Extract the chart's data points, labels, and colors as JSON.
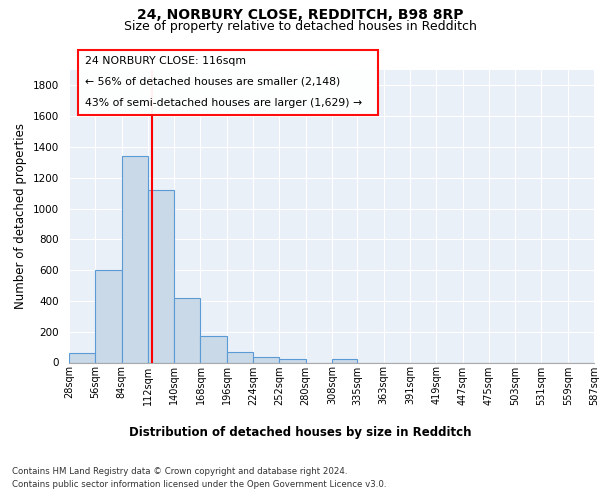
{
  "title1": "24, NORBURY CLOSE, REDDITCH, B98 8RP",
  "title2": "Size of property relative to detached houses in Redditch",
  "xlabel": "Distribution of detached houses by size in Redditch",
  "ylabel": "Number of detached properties",
  "bar_values": [
    60,
    600,
    1340,
    1120,
    420,
    170,
    65,
    35,
    20,
    0,
    20,
    0,
    0,
    0,
    0,
    0,
    0,
    0,
    0,
    0
  ],
  "bin_edges": [
    28,
    56,
    84,
    112,
    140,
    168,
    196,
    224,
    252,
    280,
    308,
    335,
    363,
    391,
    419,
    447,
    475,
    503,
    531,
    559,
    587
  ],
  "tick_labels": [
    "28sqm",
    "56sqm",
    "84sqm",
    "112sqm",
    "140sqm",
    "168sqm",
    "196sqm",
    "224sqm",
    "252sqm",
    "280sqm",
    "308sqm",
    "335sqm",
    "363sqm",
    "391sqm",
    "419sqm",
    "447sqm",
    "475sqm",
    "503sqm",
    "531sqm",
    "559sqm",
    "587sqm"
  ],
  "bar_color": "#c9d9e8",
  "bar_edge_color": "#5b9bd5",
  "red_line_x": 116,
  "annotation_line1": "24 NORBURY CLOSE: 116sqm",
  "annotation_line2": "← 56% of detached houses are smaller (2,148)",
  "annotation_line3": "43% of semi-detached houses are larger (1,629) →",
  "ylim": [
    0,
    1900
  ],
  "yticks": [
    0,
    200,
    400,
    600,
    800,
    1000,
    1200,
    1400,
    1600,
    1800
  ],
  "bg_color": "#eaf0f8",
  "footer_line1": "Contains HM Land Registry data © Crown copyright and database right 2024.",
  "footer_line2": "Contains public sector information licensed under the Open Government Licence v3.0.",
  "title1_fontsize": 10,
  "title2_fontsize": 9,
  "xlabel_fontsize": 8.5,
  "ylabel_fontsize": 8.5,
  "tick_fontsize": 7,
  "ytick_fontsize": 7.5,
  "footer_fontsize": 6.2,
  "ann_fontsize": 7.8
}
